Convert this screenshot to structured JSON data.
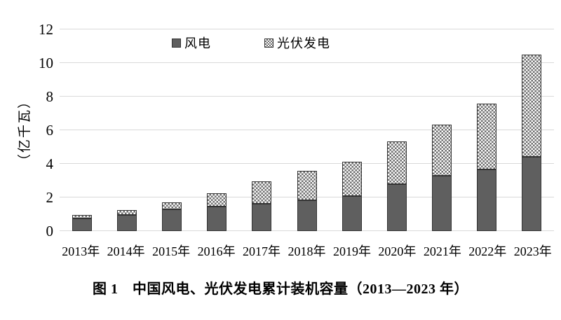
{
  "figure": {
    "caption": "图 1　中国风电、光伏发电累计装机容量（2013—2023 年）"
  },
  "chart_data": {
    "type": "bar",
    "stacked": true,
    "title": "",
    "xlabel": "",
    "ylabel": "（亿千瓦）",
    "unit": "亿千瓦",
    "ylim": [
      0,
      12
    ],
    "ytick_step": 2,
    "yticks": [
      0,
      2,
      4,
      6,
      8,
      10,
      12
    ],
    "grid": true,
    "legend_position": "top-center",
    "categories": [
      "2013年",
      "2014年",
      "2015年",
      "2016年",
      "2017年",
      "2018年",
      "2019年",
      "2020年",
      "2021年",
      "2022年",
      "2023年"
    ],
    "series": [
      {
        "name": "风电",
        "style": "solid",
        "color": "#5f5f5f",
        "values": [
          0.76,
          0.96,
          1.29,
          1.47,
          1.64,
          1.84,
          2.1,
          2.81,
          3.28,
          3.65,
          4.41
        ]
      },
      {
        "name": "光伏发电",
        "style": "checker-pattern",
        "color": "#6e6e6e",
        "values": [
          0.19,
          0.28,
          0.43,
          0.77,
          1.3,
          1.74,
          2.04,
          2.53,
          3.06,
          3.93,
          6.09
        ]
      }
    ]
  },
  "colors": {
    "wind_fill": "#5f5f5f",
    "bar_border": "#333333",
    "pattern_dot": "#6e6e6e",
    "pattern_bg": "#fdfdfd",
    "gridline": "#d9d9d9",
    "text": "#000000",
    "background": "#ffffff"
  }
}
